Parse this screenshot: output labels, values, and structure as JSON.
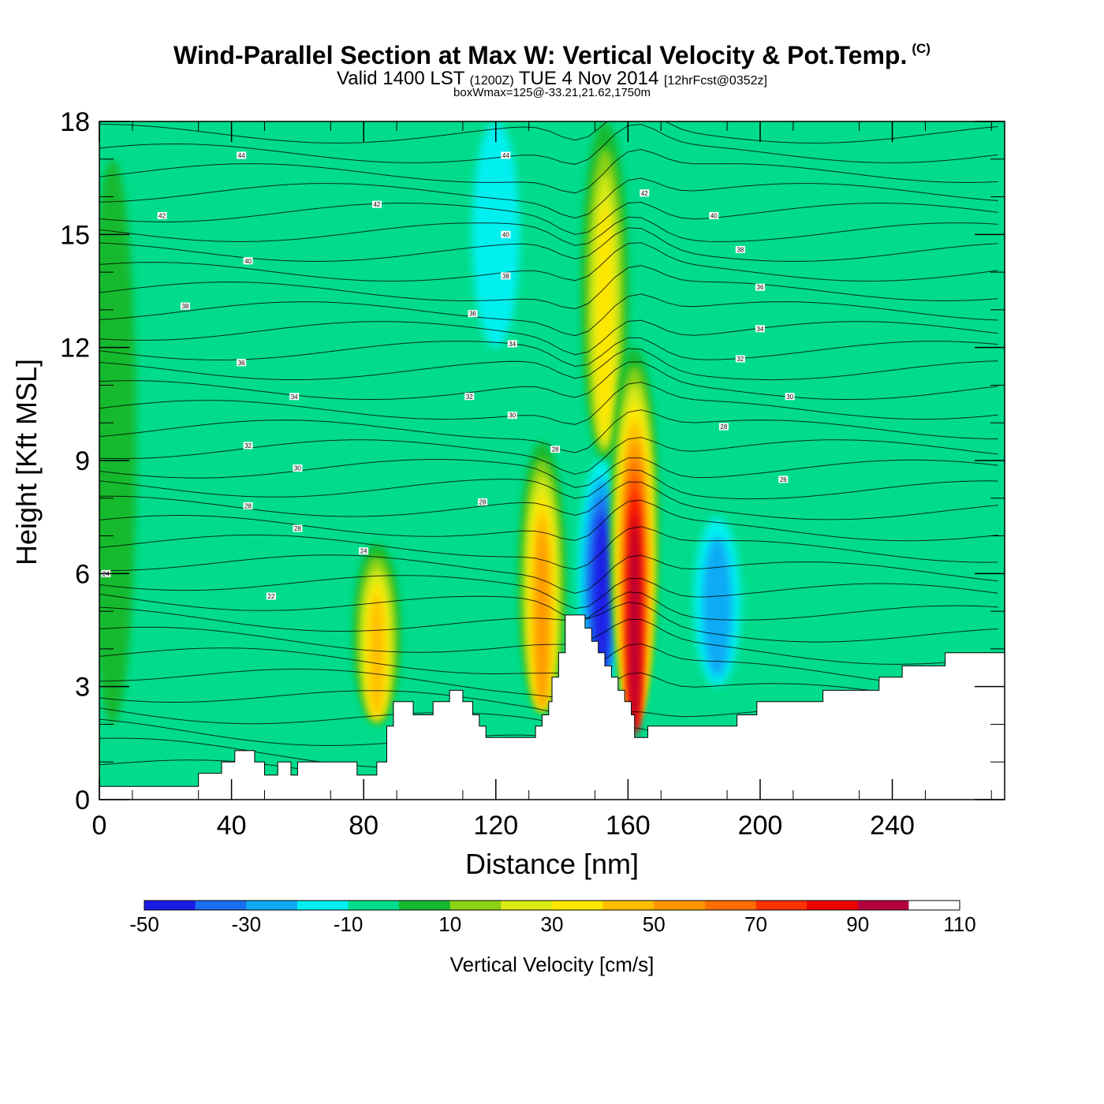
{
  "title": {
    "main": "Wind-Parallel Section at Max W: Vertical Velocity & Pot.Temp.",
    "copyright": "(C)",
    "valid_prefix": "Valid 1400 LST",
    "valid_utc": "(1200Z)",
    "valid_date": "TUE 4 Nov 2014",
    "forecast": "[12hrFcst@0352z]",
    "boxwmax": "boxWmax=125@-33.21,21.62,1750m"
  },
  "chart_data": {
    "type": "heatmap",
    "xlabel": "Distance [nm]",
    "ylabel": "Height [Kft MSL]",
    "xlim": [
      0,
      274
    ],
    "ylim": [
      0,
      18
    ],
    "xticks": [
      0,
      40,
      80,
      120,
      160,
      200,
      240
    ],
    "yticks": [
      0,
      3,
      6,
      9,
      12,
      15,
      18
    ],
    "colorbar": {
      "label": "Vertical Velocity [cm/s]",
      "bounds": [
        -50,
        -40,
        -30,
        -20,
        -10,
        0,
        10,
        20,
        30,
        40,
        50,
        60,
        70,
        80,
        90,
        100,
        110
      ],
      "tick_labels": [
        "-50",
        "-30",
        "-10",
        "10",
        "30",
        "50",
        "70",
        "90",
        "110"
      ],
      "colors": [
        "#1a1ae6",
        "#1a6ef0",
        "#10aaf5",
        "#00f0f0",
        "#00dc8c",
        "#14b92d",
        "#8cd214",
        "#dceb14",
        "#ffe600",
        "#ffbe00",
        "#ff9600",
        "#ff6e00",
        "#ff3200",
        "#f00000",
        "#b4003c",
        "#ffffff"
      ],
      "colors_note": "first 15 colors map to the 16 bounds; last unused"
    },
    "background_class": "-10 to 0",
    "vertical_velocity_features": [
      {
        "x_center": 84,
        "y_top": 6.8,
        "y_bottom": 2.0,
        "peak_class": "40 to 50"
      },
      {
        "x_center": 134,
        "y_top": 9.5,
        "y_bottom": 2.3,
        "peak_class": "50 to 60"
      },
      {
        "x_center": 153,
        "y_top": 18,
        "y_bottom": 9.0,
        "peak_class": "30 to 40"
      },
      {
        "x_center": 152,
        "y_top": 9.0,
        "y_bottom": 3.0,
        "peak_class": "-50 to -40"
      },
      {
        "x_center": 162,
        "y_top": 12.0,
        "y_bottom": 2.4,
        "peak_class": "90 to 100"
      },
      {
        "x_center": 187,
        "y_top": 7.5,
        "y_bottom": 3.0,
        "peak_class": "-30 to -20"
      },
      {
        "x_center": 120,
        "y_top": 18,
        "y_bottom": 12.0,
        "peak_class": "-20 to -10"
      },
      {
        "x_center": 4,
        "y_top": 17.0,
        "y_bottom": 2.0,
        "peak_class": "0 to 10"
      }
    ],
    "terrain_top_kft": [
      [
        0,
        0.35
      ],
      [
        30,
        0.35
      ],
      [
        30,
        0.7
      ],
      [
        37,
        0.7
      ],
      [
        37,
        1.0
      ],
      [
        41,
        1.0
      ],
      [
        41,
        1.3
      ],
      [
        47,
        1.3
      ],
      [
        47,
        1.0
      ],
      [
        50,
        1.0
      ],
      [
        50,
        0.65
      ],
      [
        54,
        0.65
      ],
      [
        54,
        1.0
      ],
      [
        58,
        1.0
      ],
      [
        58,
        0.65
      ],
      [
        60,
        0.65
      ],
      [
        60,
        1.0
      ],
      [
        78,
        1.0
      ],
      [
        78,
        0.65
      ],
      [
        84,
        0.65
      ],
      [
        84,
        1.0
      ],
      [
        87,
        1.0
      ],
      [
        87,
        1.95
      ],
      [
        89,
        1.95
      ],
      [
        89,
        2.6
      ],
      [
        95,
        2.6
      ],
      [
        95,
        2.25
      ],
      [
        101,
        2.25
      ],
      [
        101,
        2.6
      ],
      [
        106,
        2.6
      ],
      [
        106,
        2.9
      ],
      [
        110,
        2.9
      ],
      [
        110,
        2.6
      ],
      [
        113,
        2.6
      ],
      [
        113,
        2.25
      ],
      [
        115,
        2.25
      ],
      [
        115,
        1.95
      ],
      [
        117,
        1.95
      ],
      [
        117,
        1.65
      ],
      [
        132,
        1.65
      ],
      [
        132,
        1.95
      ],
      [
        134,
        1.95
      ],
      [
        134,
        2.25
      ],
      [
        136,
        2.25
      ],
      [
        136,
        2.6
      ],
      [
        137,
        2.6
      ],
      [
        137,
        3.25
      ],
      [
        139,
        3.25
      ],
      [
        139,
        3.9
      ],
      [
        141,
        3.9
      ],
      [
        141,
        4.9
      ],
      [
        147,
        4.9
      ],
      [
        147,
        4.55
      ],
      [
        149,
        4.55
      ],
      [
        149,
        4.2
      ],
      [
        151,
        4.2
      ],
      [
        151,
        3.9
      ],
      [
        153,
        3.9
      ],
      [
        153,
        3.55
      ],
      [
        155,
        3.55
      ],
      [
        155,
        3.25
      ],
      [
        157,
        3.25
      ],
      [
        157,
        2.9
      ],
      [
        159,
        2.9
      ],
      [
        159,
        2.6
      ],
      [
        161,
        2.6
      ],
      [
        161,
        2.25
      ],
      [
        162,
        2.25
      ],
      [
        162,
        1.65
      ],
      [
        166,
        1.65
      ],
      [
        166,
        1.95
      ],
      [
        193,
        1.95
      ],
      [
        193,
        2.25
      ],
      [
        199,
        2.25
      ],
      [
        199,
        2.6
      ],
      [
        219,
        2.6
      ],
      [
        219,
        2.9
      ],
      [
        236,
        2.9
      ],
      [
        236,
        3.25
      ],
      [
        243,
        3.25
      ],
      [
        243,
        3.55
      ],
      [
        256,
        3.55
      ],
      [
        256,
        3.9
      ],
      [
        274,
        3.9
      ]
    ],
    "theta_contours": {
      "count": 34,
      "contour_labels": [
        {
          "text": "44",
          "x": 43,
          "y": 17.1
        },
        {
          "text": "44",
          "x": 123,
          "y": 17.1
        },
        {
          "text": "42",
          "x": 19,
          "y": 15.5
        },
        {
          "text": "42",
          "x": 84,
          "y": 15.8
        },
        {
          "text": "42",
          "x": 165,
          "y": 16.1
        },
        {
          "text": "40",
          "x": 45,
          "y": 14.3
        },
        {
          "text": "40",
          "x": 123,
          "y": 15.0
        },
        {
          "text": "40",
          "x": 186,
          "y": 15.5
        },
        {
          "text": "38",
          "x": 26,
          "y": 13.1
        },
        {
          "text": "38",
          "x": 123,
          "y": 13.9
        },
        {
          "text": "38",
          "x": 194,
          "y": 14.6
        },
        {
          "text": "36",
          "x": 43,
          "y": 11.6
        },
        {
          "text": "36",
          "x": 113,
          "y": 12.9
        },
        {
          "text": "36",
          "x": 200,
          "y": 13.6
        },
        {
          "text": "34",
          "x": 59,
          "y": 10.7
        },
        {
          "text": "34",
          "x": 125,
          "y": 12.1
        },
        {
          "text": "34",
          "x": 200,
          "y": 12.5
        },
        {
          "text": "32",
          "x": 45,
          "y": 9.4
        },
        {
          "text": "32",
          "x": 112,
          "y": 10.7
        },
        {
          "text": "32",
          "x": 194,
          "y": 11.7
        },
        {
          "text": "30",
          "x": 60,
          "y": 8.8
        },
        {
          "text": "30",
          "x": 125,
          "y": 10.2
        },
        {
          "text": "30",
          "x": 209,
          "y": 10.7
        },
        {
          "text": "28",
          "x": 45,
          "y": 7.8
        },
        {
          "text": "28",
          "x": 116,
          "y": 7.9
        },
        {
          "text": "28",
          "x": 138,
          "y": 9.3
        },
        {
          "text": "28",
          "x": 189,
          "y": 9.9
        },
        {
          "text": "28",
          "x": 60,
          "y": 7.2
        },
        {
          "text": "26",
          "x": 207,
          "y": 8.5
        },
        {
          "text": "24",
          "x": 80,
          "y": 6.6
        },
        {
          "text": "24",
          "x": 2,
          "y": 6.0
        },
        {
          "text": "22",
          "x": 52,
          "y": 5.4
        }
      ]
    }
  }
}
